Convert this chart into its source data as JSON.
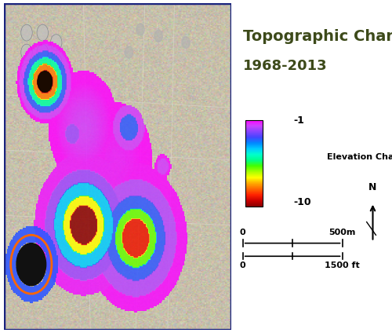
{
  "title_line1": "Topographic Change",
  "title_line2": "1968-2013",
  "title_color": "#3d4a1a",
  "title_fontsize": 14,
  "title_line2_fontsize": 13,
  "colorbar_label": "Elevation Change (m)",
  "colorbar_top_label": "-1",
  "colorbar_bottom_label": "-10",
  "colorbar_colors": [
    "#ff00ff",
    "#cc00cc",
    "#9900cc",
    "#6600ff",
    "#0000ff",
    "#0066ff",
    "#00ccff",
    "#00ffcc",
    "#00ff66",
    "#66ff00",
    "#ccff00",
    "#ffcc00",
    "#ff6600",
    "#ff3300",
    "#cc0000",
    "#8b0000"
  ],
  "scale_bar_label_m": "500m",
  "scale_bar_label_ft": "1500 ft",
  "scale_bar_0": "0",
  "north_arrow_label": "N",
  "map_border_color": "#1a237e",
  "map_border_linewidth": 2.5,
  "bg_color": "#ffffff",
  "map_bg": "#b8b4a8",
  "satellite_bg_color": "#c8c4b8"
}
